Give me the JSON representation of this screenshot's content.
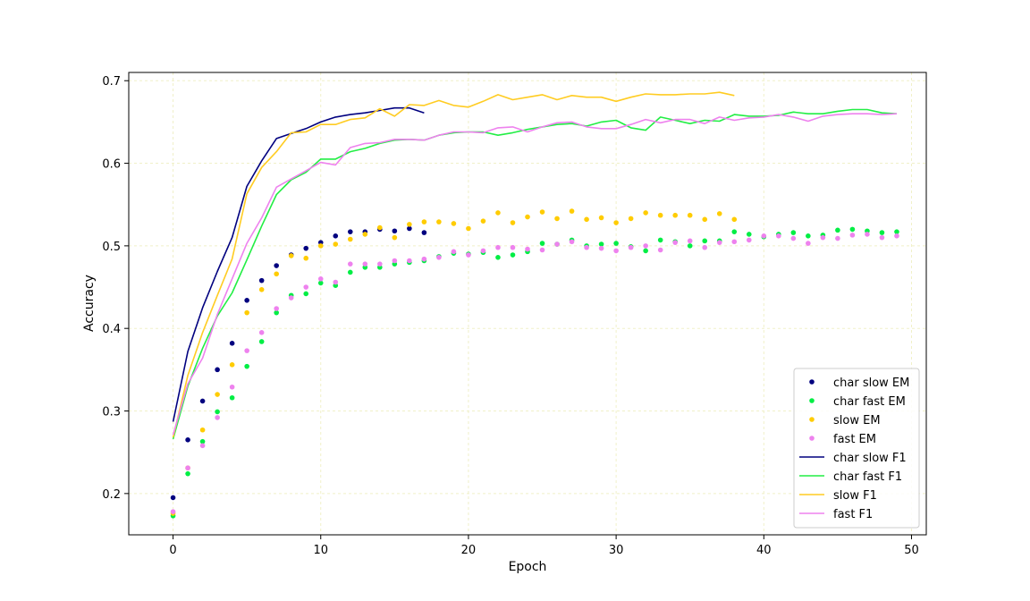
{
  "chart_data": {
    "type": "line",
    "title": "",
    "xlabel": "Epoch",
    "ylabel": "Accuracy",
    "xlim": [
      -3,
      51
    ],
    "ylim": [
      0.15,
      0.71
    ],
    "xticks": [
      0,
      10,
      20,
      30,
      40,
      50
    ],
    "yticks": [
      0.2,
      0.3,
      0.4,
      0.5,
      0.6,
      0.7
    ],
    "grid": true,
    "grid_color": "#f0f0c8",
    "legend_position": "lower-right",
    "series": [
      {
        "name": "char slow EM",
        "kind": "points",
        "color": "#00007f",
        "x": [
          0,
          1,
          2,
          3,
          4,
          5,
          6,
          7,
          8,
          9,
          10,
          11,
          12,
          13,
          14,
          15,
          16,
          17
        ],
        "y": [
          0.195,
          0.265,
          0.312,
          0.35,
          0.382,
          0.434,
          0.458,
          0.476,
          0.489,
          0.497,
          0.504,
          0.512,
          0.517,
          0.517,
          0.52,
          0.518,
          0.521,
          0.516
        ]
      },
      {
        "name": "char fast EM",
        "kind": "points",
        "color": "#00ee44",
        "x": [
          0,
          1,
          2,
          3,
          4,
          5,
          6,
          7,
          8,
          9,
          10,
          11,
          12,
          13,
          14,
          15,
          16,
          17,
          18,
          19,
          20,
          21,
          22,
          23,
          24,
          25,
          26,
          27,
          28,
          29,
          30,
          31,
          32,
          33,
          34,
          35,
          36,
          37,
          38,
          39,
          40,
          41,
          42,
          43,
          44,
          45,
          46,
          47,
          48,
          49
        ],
        "y": [
          0.173,
          0.224,
          0.263,
          0.299,
          0.316,
          0.354,
          0.384,
          0.419,
          0.44,
          0.442,
          0.455,
          0.452,
          0.468,
          0.474,
          0.474,
          0.478,
          0.48,
          0.482,
          0.487,
          0.491,
          0.49,
          0.492,
          0.486,
          0.489,
          0.493,
          0.503,
          0.502,
          0.507,
          0.5,
          0.502,
          0.503,
          0.499,
          0.494,
          0.507,
          0.505,
          0.5,
          0.506,
          0.506,
          0.517,
          0.514,
          0.511,
          0.514,
          0.516,
          0.512,
          0.513,
          0.519,
          0.52,
          0.518,
          0.516,
          0.517
        ]
      },
      {
        "name": "slow EM",
        "kind": "points",
        "color": "#ffcc00",
        "x": [
          0,
          1,
          2,
          3,
          4,
          5,
          6,
          7,
          8,
          9,
          10,
          11,
          12,
          13,
          14,
          15,
          16,
          17,
          18,
          19,
          20,
          21,
          22,
          23,
          24,
          25,
          26,
          27,
          28,
          29,
          30,
          31,
          32,
          33,
          34,
          35,
          36,
          37,
          38
        ],
        "y": [
          0.176,
          0.231,
          0.277,
          0.32,
          0.356,
          0.419,
          0.447,
          0.466,
          0.488,
          0.485,
          0.5,
          0.502,
          0.508,
          0.514,
          0.522,
          0.51,
          0.526,
          0.529,
          0.529,
          0.527,
          0.521,
          0.53,
          0.54,
          0.528,
          0.535,
          0.541,
          0.533,
          0.542,
          0.532,
          0.534,
          0.528,
          0.533,
          0.54,
          0.537,
          0.537,
          0.537,
          0.532,
          0.539,
          0.532
        ]
      },
      {
        "name": "fast EM",
        "kind": "points",
        "color": "#ee82ee",
        "x": [
          0,
          1,
          2,
          3,
          4,
          5,
          6,
          7,
          8,
          9,
          10,
          11,
          12,
          13,
          14,
          15,
          16,
          17,
          18,
          19,
          20,
          21,
          22,
          23,
          24,
          25,
          26,
          27,
          28,
          29,
          30,
          31,
          32,
          33,
          34,
          35,
          36,
          37,
          38,
          39,
          40,
          41,
          42,
          43,
          44,
          45,
          46,
          47,
          48,
          49
        ],
        "y": [
          0.178,
          0.231,
          0.258,
          0.292,
          0.329,
          0.373,
          0.395,
          0.424,
          0.437,
          0.45,
          0.46,
          0.456,
          0.478,
          0.478,
          0.478,
          0.482,
          0.482,
          0.484,
          0.486,
          0.493,
          0.489,
          0.494,
          0.498,
          0.498,
          0.496,
          0.495,
          0.502,
          0.505,
          0.498,
          0.497,
          0.494,
          0.498,
          0.5,
          0.495,
          0.504,
          0.506,
          0.498,
          0.504,
          0.505,
          0.507,
          0.512,
          0.512,
          0.509,
          0.503,
          0.51,
          0.509,
          0.513,
          0.514,
          0.51,
          0.512
        ]
      },
      {
        "name": "char slow F1",
        "kind": "line",
        "color": "#00007f",
        "x": [
          0,
          1,
          2,
          3,
          4,
          5,
          6,
          7,
          8,
          9,
          10,
          11,
          12,
          13,
          14,
          15,
          16,
          17
        ],
        "y": [
          0.287,
          0.372,
          0.425,
          0.469,
          0.51,
          0.572,
          0.603,
          0.63,
          0.636,
          0.642,
          0.65,
          0.656,
          0.659,
          0.661,
          0.664,
          0.667,
          0.667,
          0.661
        ]
      },
      {
        "name": "char fast F1",
        "kind": "line",
        "color": "#22ee44",
        "x": [
          0,
          1,
          2,
          3,
          4,
          5,
          6,
          7,
          8,
          9,
          10,
          11,
          12,
          13,
          14,
          15,
          16,
          17,
          18,
          19,
          20,
          21,
          22,
          23,
          24,
          25,
          26,
          27,
          28,
          29,
          30,
          31,
          32,
          33,
          34,
          35,
          36,
          37,
          38,
          39,
          40,
          41,
          42,
          43,
          44,
          45,
          46,
          47,
          48,
          49
        ],
        "y": [
          0.266,
          0.33,
          0.376,
          0.415,
          0.443,
          0.483,
          0.524,
          0.562,
          0.58,
          0.589,
          0.605,
          0.605,
          0.614,
          0.618,
          0.624,
          0.628,
          0.629,
          0.628,
          0.634,
          0.637,
          0.638,
          0.638,
          0.634,
          0.637,
          0.641,
          0.644,
          0.647,
          0.648,
          0.645,
          0.65,
          0.652,
          0.643,
          0.64,
          0.656,
          0.652,
          0.648,
          0.652,
          0.651,
          0.659,
          0.657,
          0.657,
          0.658,
          0.662,
          0.66,
          0.66,
          0.663,
          0.665,
          0.665,
          0.661,
          0.66
        ]
      },
      {
        "name": "slow F1",
        "kind": "line",
        "color": "#ffcc22",
        "x": [
          0,
          1,
          2,
          3,
          4,
          5,
          6,
          7,
          8,
          9,
          10,
          11,
          12,
          13,
          14,
          15,
          16,
          17,
          18,
          19,
          20,
          21,
          22,
          23,
          24,
          25,
          26,
          27,
          28,
          29,
          30,
          31,
          32,
          33,
          34,
          35,
          36,
          37,
          38
        ],
        "y": [
          0.268,
          0.343,
          0.395,
          0.44,
          0.484,
          0.563,
          0.595,
          0.614,
          0.637,
          0.638,
          0.647,
          0.647,
          0.653,
          0.655,
          0.666,
          0.657,
          0.671,
          0.67,
          0.676,
          0.67,
          0.668,
          0.675,
          0.683,
          0.677,
          0.68,
          0.683,
          0.677,
          0.682,
          0.68,
          0.68,
          0.675,
          0.68,
          0.684,
          0.683,
          0.683,
          0.684,
          0.684,
          0.686,
          0.682
        ]
      },
      {
        "name": "fast F1",
        "kind": "line",
        "color": "#ee82ee",
        "x": [
          0,
          1,
          2,
          3,
          4,
          5,
          6,
          7,
          8,
          9,
          10,
          11,
          12,
          13,
          14,
          15,
          16,
          17,
          18,
          19,
          20,
          21,
          22,
          23,
          24,
          25,
          26,
          27,
          28,
          29,
          30,
          31,
          32,
          33,
          34,
          35,
          36,
          37,
          38,
          39,
          40,
          41,
          42,
          43,
          44,
          45,
          46,
          47,
          48,
          49
        ],
        "y": [
          0.271,
          0.333,
          0.364,
          0.417,
          0.46,
          0.503,
          0.534,
          0.571,
          0.581,
          0.591,
          0.601,
          0.598,
          0.619,
          0.624,
          0.625,
          0.629,
          0.629,
          0.628,
          0.634,
          0.638,
          0.638,
          0.637,
          0.643,
          0.644,
          0.638,
          0.644,
          0.649,
          0.65,
          0.644,
          0.642,
          0.642,
          0.647,
          0.653,
          0.649,
          0.653,
          0.653,
          0.648,
          0.656,
          0.652,
          0.655,
          0.656,
          0.659,
          0.656,
          0.651,
          0.657,
          0.659,
          0.66,
          0.66,
          0.659,
          0.66
        ]
      }
    ]
  }
}
